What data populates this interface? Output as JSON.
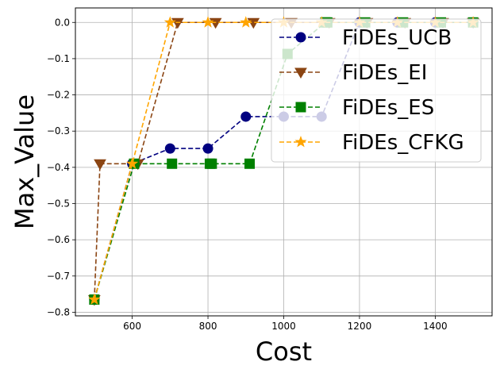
{
  "chart_data": {
    "type": "line",
    "xlabel": "Cost",
    "ylabel": "Max_Value",
    "xlim": [
      450,
      1550
    ],
    "ylim": [
      -0.81,
      0.04
    ],
    "xticks": [
      600,
      800,
      1000,
      1200,
      1400
    ],
    "yticks": [
      0.0,
      -0.1,
      -0.2,
      -0.3,
      -0.4,
      -0.5,
      -0.6,
      -0.7,
      -0.8
    ],
    "grid": true,
    "legend_position": "top-right",
    "series": [
      {
        "name": "FiDEs_UCB",
        "color": "#000080",
        "marker": "circle",
        "x": [
          500,
          600,
          700,
          800,
          900,
          1000,
          1100,
          1200,
          1300,
          1400,
          1500
        ],
        "y": [
          -0.765,
          -0.39,
          -0.348,
          -0.348,
          -0.26,
          -0.26,
          -0.26,
          0.0,
          0.0,
          0.0,
          0.0
        ]
      },
      {
        "name": "FiDEs_EI",
        "color": "#8B4513",
        "marker": "triangle-down",
        "x": [
          500,
          515,
          615,
          720,
          820,
          920,
          1020,
          1120,
          1220,
          1320,
          1420,
          1500
        ],
        "y": [
          -0.765,
          -0.39,
          -0.39,
          0.0,
          0.0,
          0.0,
          0.0,
          0.0,
          0.0,
          0.0,
          0.0,
          0.0
        ]
      },
      {
        "name": "FiDEs_ES",
        "color": "#008000",
        "marker": "square",
        "x": [
          500,
          605,
          705,
          805,
          810,
          910,
          1010,
          1110,
          1115,
          1215,
          1315,
          1415,
          1500
        ],
        "y": [
          -0.765,
          -0.39,
          -0.39,
          -0.39,
          -0.39,
          -0.39,
          -0.087,
          0.0,
          0.0,
          0.0,
          0.0,
          0.0,
          0.0
        ]
      },
      {
        "name": "FiDEs_CFKG",
        "color": "#FFA500",
        "marker": "star",
        "x": [
          500,
          600,
          700,
          800,
          900,
          1000,
          1100,
          1200,
          1300,
          1400,
          1500
        ],
        "y": [
          -0.765,
          -0.39,
          0.0,
          0.0,
          0.0,
          0.0,
          0.0,
          0.0,
          0.0,
          0.0,
          0.0
        ]
      }
    ]
  }
}
